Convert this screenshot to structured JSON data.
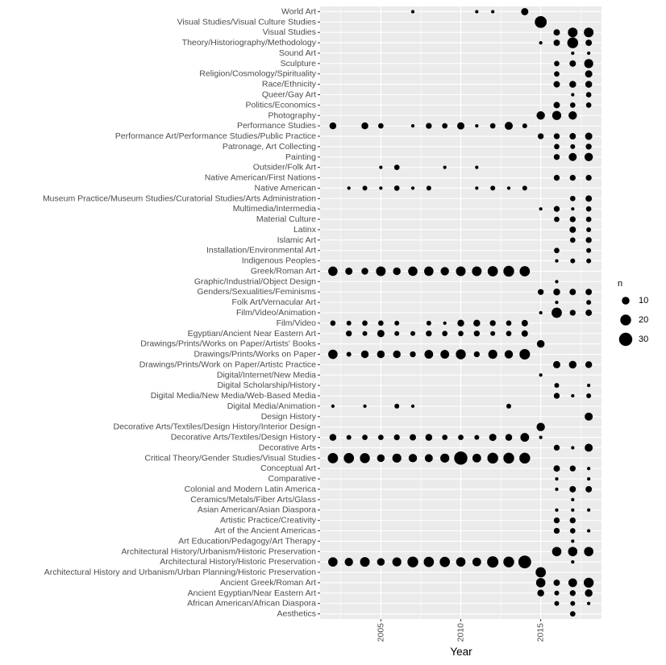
{
  "chart_data": {
    "type": "scatter",
    "xlabel": "Year",
    "ylabel": "",
    "xlim": [
      2001.2,
      2018.8
    ],
    "x_ticks": [
      2005,
      2010,
      2015
    ],
    "grid": true,
    "legend": {
      "title": "n",
      "entries": [
        10,
        20,
        30
      ],
      "placement": "right"
    },
    "color": "#000000",
    "panel_bg": "#EBEBEB",
    "rows": [
      {
        "label": "World Art",
        "points": [
          [
            2007,
            2
          ],
          [
            2011,
            2
          ],
          [
            2012,
            2
          ],
          [
            2014,
            9
          ]
        ]
      },
      {
        "label": "Visual Studies/Visual Culture Studies",
        "points": [
          [
            2015,
            24
          ]
        ]
      },
      {
        "label": "Visual Studies",
        "points": [
          [
            2016,
            7
          ],
          [
            2017,
            16
          ],
          [
            2018,
            16
          ]
        ]
      },
      {
        "label": "Theory/Historiography/Methodology",
        "points": [
          [
            2015,
            2
          ],
          [
            2016,
            7
          ],
          [
            2017,
            20
          ],
          [
            2018,
            7
          ]
        ]
      },
      {
        "label": "Sound Art",
        "points": [
          [
            2017,
            2
          ],
          [
            2018,
            2
          ]
        ]
      },
      {
        "label": "Sculpture",
        "points": [
          [
            2016,
            5
          ],
          [
            2017,
            7
          ],
          [
            2018,
            14
          ]
        ]
      },
      {
        "label": "Religion/Cosmology/Spirituality",
        "points": [
          [
            2016,
            5
          ],
          [
            2018,
            9
          ]
        ]
      },
      {
        "label": "Race/Ethnicity",
        "points": [
          [
            2016,
            7
          ],
          [
            2017,
            8
          ],
          [
            2018,
            8
          ]
        ]
      },
      {
        "label": "Queer/Gay Art",
        "points": [
          [
            2017,
            2
          ],
          [
            2018,
            5
          ]
        ]
      },
      {
        "label": "Politics/Economics",
        "points": [
          [
            2016,
            7
          ],
          [
            2017,
            5
          ],
          [
            2018,
            5
          ]
        ]
      },
      {
        "label": "Photography",
        "points": [
          [
            2015,
            12
          ],
          [
            2016,
            14
          ],
          [
            2017,
            12
          ]
        ]
      },
      {
        "label": "Performance Studies",
        "points": [
          [
            2002,
            8
          ],
          [
            2004,
            8
          ],
          [
            2005,
            5
          ],
          [
            2007,
            2
          ],
          [
            2008,
            6
          ],
          [
            2009,
            5
          ],
          [
            2010,
            9
          ],
          [
            2011,
            2
          ],
          [
            2012,
            5
          ],
          [
            2013,
            11
          ],
          [
            2014,
            4
          ]
        ]
      },
      {
        "label": "Performance Art/Performance Studies/Public Practice",
        "points": [
          [
            2015,
            6
          ],
          [
            2016,
            6
          ],
          [
            2017,
            7
          ],
          [
            2018,
            9
          ]
        ]
      },
      {
        "label": "Patronage, Art Collecting",
        "points": [
          [
            2016,
            5
          ],
          [
            2017,
            4
          ],
          [
            2018,
            6
          ]
        ]
      },
      {
        "label": "Painting",
        "points": [
          [
            2016,
            6
          ],
          [
            2017,
            11
          ],
          [
            2018,
            12
          ]
        ]
      },
      {
        "label": "Outsider/Folk Art",
        "points": [
          [
            2005,
            2
          ],
          [
            2006,
            5
          ],
          [
            2009,
            2
          ],
          [
            2011,
            2
          ]
        ]
      },
      {
        "label": "Native American/First Nations",
        "points": [
          [
            2016,
            6
          ],
          [
            2017,
            6
          ],
          [
            2018,
            6
          ]
        ]
      },
      {
        "label": "Native American",
        "points": [
          [
            2003,
            2
          ],
          [
            2004,
            4
          ],
          [
            2005,
            2
          ],
          [
            2006,
            5
          ],
          [
            2007,
            2
          ],
          [
            2008,
            4
          ],
          [
            2011,
            2
          ],
          [
            2012,
            4
          ],
          [
            2013,
            2
          ],
          [
            2014,
            4
          ]
        ]
      },
      {
        "label": "Museum Practice/Museum Studies/Curatorial Studies/Arts Administration",
        "points": [
          [
            2017,
            5
          ],
          [
            2018,
            7
          ]
        ]
      },
      {
        "label": "Multimedia/Intermedia",
        "points": [
          [
            2015,
            2
          ],
          [
            2016,
            6
          ],
          [
            2017,
            2
          ],
          [
            2018,
            5
          ]
        ]
      },
      {
        "label": "Material Culture",
        "points": [
          [
            2016,
            5
          ],
          [
            2017,
            6
          ],
          [
            2018,
            5
          ]
        ]
      },
      {
        "label": "Latinx",
        "points": [
          [
            2017,
            7
          ],
          [
            2018,
            4
          ]
        ]
      },
      {
        "label": "Islamic Art",
        "points": [
          [
            2017,
            5
          ],
          [
            2018,
            6
          ]
        ]
      },
      {
        "label": "Installation/Environmental Art",
        "points": [
          [
            2016,
            5
          ],
          [
            2018,
            4
          ]
        ]
      },
      {
        "label": "Indigenous Peoples",
        "points": [
          [
            2016,
            2
          ],
          [
            2017,
            4
          ],
          [
            2018,
            4
          ]
        ]
      },
      {
        "label": "Greek/Roman Art",
        "points": [
          [
            2002,
            15
          ],
          [
            2003,
            9
          ],
          [
            2004,
            8
          ],
          [
            2005,
            16
          ],
          [
            2006,
            10
          ],
          [
            2007,
            15
          ],
          [
            2008,
            15
          ],
          [
            2009,
            12
          ],
          [
            2010,
            16
          ],
          [
            2011,
            16
          ],
          [
            2012,
            18
          ],
          [
            2013,
            20
          ],
          [
            2014,
            18
          ]
        ]
      },
      {
        "label": "Graphic/Industrial/Object Design",
        "points": [
          [
            2016,
            2
          ]
        ]
      },
      {
        "label": "Genders/Sexualities/Feminisms",
        "points": [
          [
            2015,
            6
          ],
          [
            2016,
            8
          ],
          [
            2017,
            7
          ],
          [
            2018,
            7
          ]
        ]
      },
      {
        "label": "Folk Art/Vernacular Art",
        "points": [
          [
            2016,
            2
          ],
          [
            2018,
            4
          ]
        ]
      },
      {
        "label": "Film/Video/Animation",
        "points": [
          [
            2015,
            2
          ],
          [
            2016,
            18
          ],
          [
            2017,
            6
          ],
          [
            2018,
            7
          ]
        ]
      },
      {
        "label": "Film/Video",
        "points": [
          [
            2002,
            5
          ],
          [
            2003,
            4
          ],
          [
            2004,
            5
          ],
          [
            2005,
            5
          ],
          [
            2006,
            4
          ],
          [
            2008,
            4
          ],
          [
            2009,
            2
          ],
          [
            2010,
            8
          ],
          [
            2011,
            8
          ],
          [
            2012,
            6
          ],
          [
            2013,
            5
          ],
          [
            2014,
            7
          ]
        ]
      },
      {
        "label": "Egyptian/Ancient Near Eastern Art",
        "points": [
          [
            2003,
            6
          ],
          [
            2004,
            4
          ],
          [
            2005,
            9
          ],
          [
            2006,
            4
          ],
          [
            2007,
            4
          ],
          [
            2008,
            6
          ],
          [
            2009,
            5
          ],
          [
            2010,
            5
          ],
          [
            2011,
            6
          ],
          [
            2012,
            4
          ],
          [
            2013,
            5
          ],
          [
            2014,
            7
          ]
        ]
      },
      {
        "label": "Drawings/Prints/Works on Paper/Artists' Books",
        "points": [
          [
            2015,
            10
          ]
        ]
      },
      {
        "label": "Drawings/Prints/Works on Paper",
        "points": [
          [
            2002,
            15
          ],
          [
            2003,
            4
          ],
          [
            2004,
            10
          ],
          [
            2005,
            10
          ],
          [
            2006,
            10
          ],
          [
            2007,
            6
          ],
          [
            2008,
            13
          ],
          [
            2009,
            13
          ],
          [
            2010,
            17
          ],
          [
            2011,
            6
          ],
          [
            2012,
            14
          ],
          [
            2013,
            12
          ],
          [
            2014,
            19
          ]
        ]
      },
      {
        "label": "Drawings/Prints/Work on Paper/Artistc Practice",
        "points": [
          [
            2016,
            9
          ],
          [
            2017,
            10
          ],
          [
            2018,
            8
          ]
        ]
      },
      {
        "label": "Digital/Internet/New Media",
        "points": [
          [
            2015,
            2
          ]
        ]
      },
      {
        "label": "Digital Scholarship/History",
        "points": [
          [
            2016,
            4
          ],
          [
            2018,
            2
          ]
        ]
      },
      {
        "label": "Digital Media/New Media/Web-Based Media",
        "points": [
          [
            2016,
            6
          ],
          [
            2017,
            2
          ],
          [
            2018,
            4
          ]
        ]
      },
      {
        "label": "Digital Media/Animation",
        "points": [
          [
            2002,
            2
          ],
          [
            2004,
            2
          ],
          [
            2006,
            4
          ],
          [
            2007,
            2
          ],
          [
            2013,
            4
          ]
        ]
      },
      {
        "label": "Design History",
        "points": [
          [
            2018,
            11
          ]
        ]
      },
      {
        "label": "Decorative Arts/Textiles/Design History/Interior Design",
        "points": [
          [
            2015,
            12
          ]
        ]
      },
      {
        "label": "Decorative Arts/Textiles/Design History",
        "points": [
          [
            2002,
            8
          ],
          [
            2003,
            4
          ],
          [
            2004,
            5
          ],
          [
            2005,
            5
          ],
          [
            2006,
            6
          ],
          [
            2007,
            7
          ],
          [
            2008,
            8
          ],
          [
            2009,
            5
          ],
          [
            2010,
            5
          ],
          [
            2011,
            4
          ],
          [
            2012,
            9
          ],
          [
            2013,
            8
          ],
          [
            2014,
            13
          ],
          [
            2015,
            2
          ]
        ]
      },
      {
        "label": "Decorative Arts",
        "points": [
          [
            2016,
            6
          ],
          [
            2017,
            2
          ],
          [
            2018,
            11
          ]
        ]
      },
      {
        "label": "Critical Theory/Gender Studies/Visual Studies",
        "points": [
          [
            2002,
            18
          ],
          [
            2003,
            18
          ],
          [
            2004,
            17
          ],
          [
            2005,
            10
          ],
          [
            2006,
            14
          ],
          [
            2007,
            12
          ],
          [
            2008,
            11
          ],
          [
            2009,
            14
          ],
          [
            2010,
            30
          ],
          [
            2011,
            13
          ],
          [
            2012,
            20
          ],
          [
            2013,
            20
          ],
          [
            2014,
            20
          ]
        ]
      },
      {
        "label": "Conceptual Art",
        "points": [
          [
            2016,
            7
          ],
          [
            2017,
            6
          ],
          [
            2018,
            2
          ]
        ]
      },
      {
        "label": "Comparative",
        "points": [
          [
            2016,
            2
          ],
          [
            2018,
            2
          ]
        ]
      },
      {
        "label": "Colonial and Modern Latin America",
        "points": [
          [
            2016,
            2
          ],
          [
            2017,
            7
          ],
          [
            2018,
            7
          ]
        ]
      },
      {
        "label": "Ceramics/Metals/Fiber Arts/Glass",
        "points": [
          [
            2017,
            2
          ]
        ]
      },
      {
        "label": "Asian American/Asian Diaspora",
        "points": [
          [
            2016,
            2
          ],
          [
            2017,
            2
          ],
          [
            2018,
            2
          ]
        ]
      },
      {
        "label": "Artistic Practice/Creativity",
        "points": [
          [
            2016,
            6
          ],
          [
            2017,
            6
          ]
        ]
      },
      {
        "label": "Art of the Ancient Americas",
        "points": [
          [
            2016,
            6
          ],
          [
            2017,
            5
          ],
          [
            2018,
            2
          ]
        ]
      },
      {
        "label": "Art Education/Pedagogy/Art Therapy",
        "points": [
          [
            2017,
            2
          ]
        ]
      },
      {
        "label": "Architectural History/Urbanism/Historic Preservation",
        "points": [
          [
            2016,
            15
          ],
          [
            2017,
            15
          ],
          [
            2018,
            15
          ]
        ]
      },
      {
        "label": "Architectural History/Historic Preservation",
        "points": [
          [
            2002,
            15
          ],
          [
            2003,
            12
          ],
          [
            2004,
            16
          ],
          [
            2005,
            10
          ],
          [
            2006,
            14
          ],
          [
            2007,
            20
          ],
          [
            2008,
            18
          ],
          [
            2009,
            18
          ],
          [
            2010,
            15
          ],
          [
            2011,
            13
          ],
          [
            2012,
            22
          ],
          [
            2013,
            20
          ],
          [
            2014,
            28
          ],
          [
            2017,
            2
          ]
        ]
      },
      {
        "label": "Architectural History and Urbanism/Urban Planning/Historic Preservation",
        "points": [
          [
            2015,
            18
          ]
        ]
      },
      {
        "label": "Ancient Greek/Roman Art",
        "points": [
          [
            2015,
            15
          ],
          [
            2016,
            7
          ],
          [
            2017,
            13
          ],
          [
            2018,
            17
          ]
        ]
      },
      {
        "label": "Ancient Egyptian/Near Eastern Art",
        "points": [
          [
            2015,
            8
          ],
          [
            2016,
            4
          ],
          [
            2017,
            6
          ],
          [
            2018,
            10
          ]
        ]
      },
      {
        "label": "African American/African Diaspora",
        "points": [
          [
            2016,
            4
          ],
          [
            2017,
            4
          ],
          [
            2018,
            2
          ]
        ]
      },
      {
        "label": "Aesthetics",
        "points": [
          [
            2017,
            5
          ]
        ]
      }
    ]
  }
}
